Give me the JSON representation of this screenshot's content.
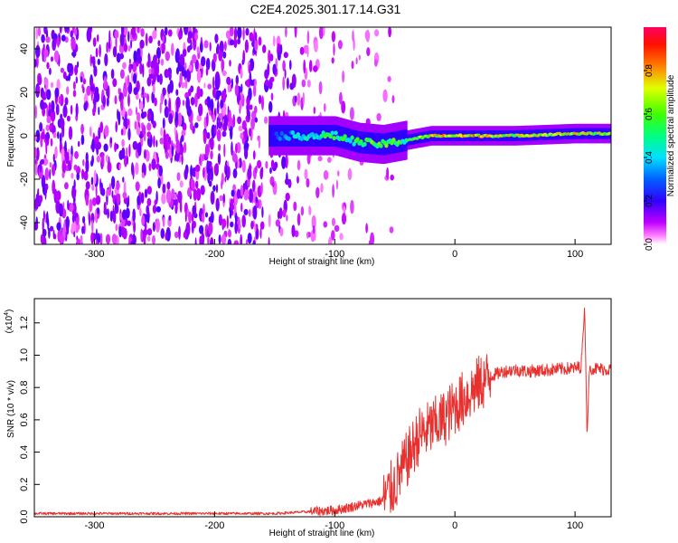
{
  "chart_data": [
    {
      "type": "heatmap",
      "title": "C2E4.2025.301.17.14.G31",
      "xlabel": "Height of straight line (km)",
      "ylabel": "Frequency (Hz)",
      "xlim": [
        -350,
        130
      ],
      "ylim": [
        -50,
        50
      ],
      "xticks": [
        -300,
        -200,
        -100,
        0,
        100
      ],
      "yticks": [
        -40,
        -20,
        0,
        20,
        40
      ],
      "grid": false,
      "colorbar": {
        "label": "Normalized spectral amplitude",
        "range": [
          0.0,
          1.0
        ],
        "ticks": [
          "0.0",
          "0.2",
          "0.4",
          "0.6",
          "0.8"
        ],
        "colors": [
          "#ffffff",
          "#ff00ff",
          "#8000ff",
          "#0000ff",
          "#00ffff",
          "#00ff00",
          "#ffff00",
          "#ff8000",
          "#ff0000",
          "#ff0080"
        ]
      },
      "signal_band": [
        {
          "x": -150,
          "freq": 0,
          "amp": 0.3
        },
        {
          "x": -120,
          "freq": 0,
          "amp": 0.5
        },
        {
          "x": -100,
          "freq": 0,
          "amp": 0.55
        },
        {
          "x": -80,
          "freq": -3,
          "amp": 0.55
        },
        {
          "x": -60,
          "freq": -4,
          "amp": 0.65
        },
        {
          "x": -40,
          "freq": -2,
          "amp": 0.55
        },
        {
          "x": -20,
          "freq": 0,
          "amp": 0.75
        },
        {
          "x": 0,
          "freq": 0,
          "amp": 0.85
        },
        {
          "x": 50,
          "freq": 0,
          "amp": 0.7
        },
        {
          "x": 100,
          "freq": 1,
          "amp": 0.75
        },
        {
          "x": 130,
          "freq": 1,
          "amp": 0.7
        }
      ]
    },
    {
      "type": "line",
      "xlabel": "Height of straight line (km)",
      "ylabel": "SNR (10 * v/v)",
      "scale_label": "(x10",
      "scale_exponent": "4",
      "xlim": [
        -350,
        130
      ],
      "ylim": [
        0,
        1.35
      ],
      "xticks": [
        -300,
        -200,
        -100,
        0,
        100
      ],
      "yticks": [
        "0.0",
        "0.2",
        "0.4",
        "0.6",
        "0.8",
        "1.0",
        "1.2"
      ],
      "color": "#e8312f",
      "series": [
        {
          "name": "SNR",
          "x": [
            -350,
            -150,
            -100,
            -80,
            -60,
            -50,
            -40,
            -30,
            -20,
            -10,
            0,
            10,
            20,
            30,
            40,
            50,
            60,
            80,
            100,
            105,
            108,
            110,
            112,
            130
          ],
          "y": [
            0.02,
            0.02,
            0.04,
            0.07,
            0.1,
            0.2,
            0.35,
            0.5,
            0.55,
            0.6,
            0.68,
            0.75,
            0.82,
            0.87,
            0.9,
            0.91,
            0.9,
            0.91,
            0.92,
            0.93,
            1.3,
            0.5,
            0.92,
            0.91
          ]
        }
      ]
    }
  ]
}
